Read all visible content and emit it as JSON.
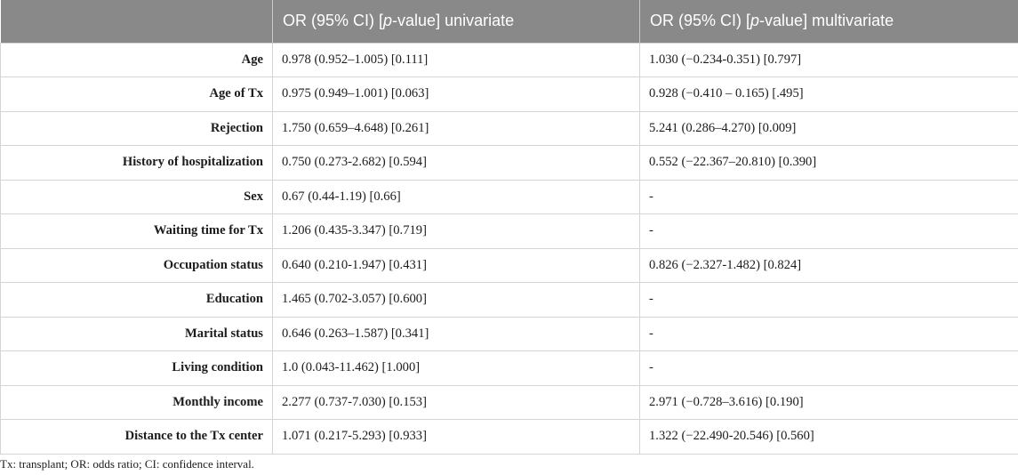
{
  "header": {
    "col0": "",
    "col1_prefix": "OR (95% CI) [",
    "col1_italic": "p",
    "col1_suffix": "-value] univariate",
    "col2_prefix": "OR (95% CI) [",
    "col2_italic": "p",
    "col2_suffix": "-value] multivariate"
  },
  "rows": [
    {
      "label": "Age",
      "univariate": "0.978 (0.952–1.005) [0.111]",
      "multivariate": "1.030 (−0.234-0.351) [0.797]"
    },
    {
      "label": "Age of Tx",
      "univariate": "0.975 (0.949–1.001) [0.063]",
      "multivariate": "0.928 (−0.410 – 0.165) [.495]"
    },
    {
      "label": "Rejection",
      "univariate": "1.750 (0.659–4.648) [0.261]",
      "multivariate": "5.241 (0.286–4.270) [0.009]"
    },
    {
      "label": "History of hospitalization",
      "univariate": "0.750 (0.273-2.682) [0.594]",
      "multivariate": "0.552 (−22.367–20.810) [0.390]"
    },
    {
      "label": "Sex",
      "univariate": "0.67 (0.44-1.19) [0.66]",
      "multivariate": "-"
    },
    {
      "label": "Waiting time for Tx",
      "univariate": "1.206 (0.435-3.347) [0.719]",
      "multivariate": "-"
    },
    {
      "label": "Occupation status",
      "univariate": "0.640 (0.210-1.947) [0.431]",
      "multivariate": "0.826 (−2.327-1.482) [0.824]"
    },
    {
      "label": "Education",
      "univariate": "1.465 (0.702-3.057) [0.600]",
      "multivariate": "-"
    },
    {
      "label": "Marital status",
      "univariate": "0.646 (0.263–1.587) [0.341]",
      "multivariate": "-"
    },
    {
      "label": "Living condition",
      "univariate": "1.0 (0.043-11.462) [1.000]",
      "multivariate": "-"
    },
    {
      "label": "Monthly income",
      "univariate": "2.277 (0.737-7.030) [0.153]",
      "multivariate": "2.971 (−0.728–3.616) [0.190]"
    },
    {
      "label": "Distance to the Tx center",
      "univariate": "1.071 (0.217-5.293) [0.933]",
      "multivariate": "1.322 (−22.490-20.546) [0.560]"
    }
  ],
  "footnote": "Tx: transplant; OR: odds ratio; CI: confidence interval.",
  "colors": {
    "header_bg": "#898989",
    "header_text": "#ffffff",
    "grid_line": "#d4d4d4"
  }
}
